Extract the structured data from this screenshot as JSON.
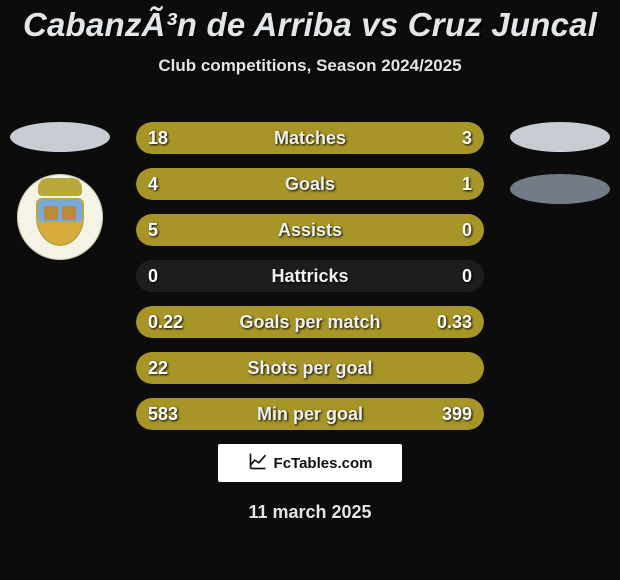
{
  "background_color": "#0c0c0c",
  "title": "CabanzÃ³n de Arriba vs Cruz Juncal",
  "title_color": "#e2e6e9",
  "subtitle": "Club competitions, Season 2024/2025",
  "date": "11 march 2025",
  "branding": {
    "text": "FcTables.com"
  },
  "left_player": {
    "oval_color": "#c7cdd2",
    "crest": {
      "bg": "#f5f2e6",
      "crown_color": "#b7a83b",
      "shield_top": "#7aa9d6",
      "shield_bottom": "#d8a93b",
      "tower_color": "#b88a3c"
    }
  },
  "right_player": {
    "ovals": [
      "#c7cdd2",
      "#737c84"
    ]
  },
  "bar_track_color": "#1d1d1d",
  "left_bar_color": "#a79527",
  "right_bar_color": "#a79527",
  "rows": [
    {
      "label": "Matches",
      "left": "18",
      "right": "3",
      "left_pct": 86,
      "right_pct": 14
    },
    {
      "label": "Goals",
      "left": "4",
      "right": "1",
      "left_pct": 80,
      "right_pct": 20
    },
    {
      "label": "Assists",
      "left": "5",
      "right": "0",
      "left_pct": 100,
      "right_pct": 0
    },
    {
      "label": "Hattricks",
      "left": "0",
      "right": "0",
      "left_pct": 0,
      "right_pct": 0
    },
    {
      "label": "Goals per match",
      "left": "0.22",
      "right": "0.33",
      "left_pct": 40,
      "right_pct": 60
    },
    {
      "label": "Shots per goal",
      "left": "22",
      "right": "",
      "left_pct": 100,
      "right_pct": 0
    },
    {
      "label": "Min per goal",
      "left": "583",
      "right": "399",
      "left_pct": 59,
      "right_pct": 41
    }
  ]
}
